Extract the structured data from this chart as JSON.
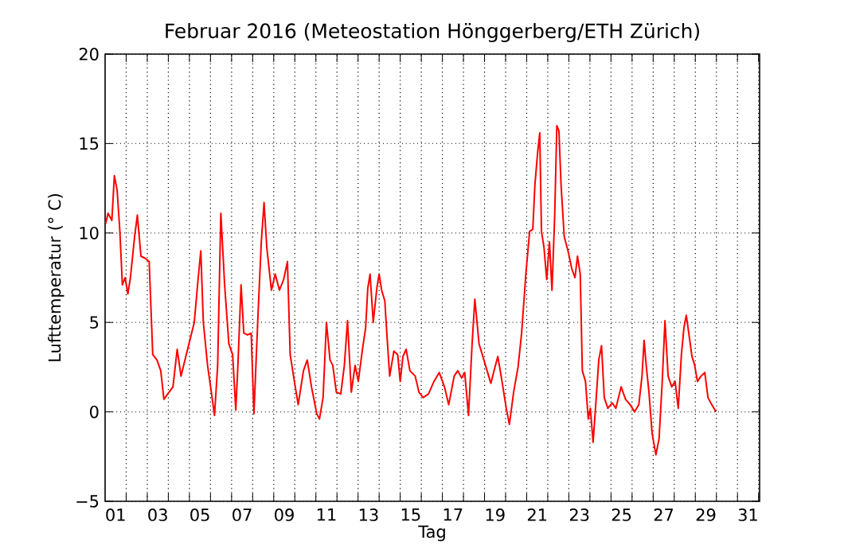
{
  "chart_data": {
    "type": "line",
    "title": "Februar 2016  (Meteostation Hönggerberg/ETH Zürich)",
    "xlabel": "Tag",
    "ylabel": "Lufttemperatur (° C)",
    "x": [
      0.52,
      0.64,
      0.82,
      0.94,
      1.07,
      1.2,
      1.32,
      1.45,
      1.58,
      1.7,
      1.9,
      2.03,
      2.2,
      2.38,
      2.59,
      2.76,
      2.96,
      3.14,
      3.29,
      3.47,
      3.72,
      3.92,
      4.1,
      4.35,
      4.73,
      4.91,
      5.04,
      5.16,
      5.36,
      5.54,
      5.69,
      5.84,
      5.99,
      6.17,
      6.37,
      6.55,
      6.7,
      6.8,
      6.95,
      7.08,
      7.26,
      7.43,
      7.56,
      7.76,
      7.91,
      8.04,
      8.17,
      8.39,
      8.57,
      8.77,
      8.97,
      9.15,
      9.28,
      9.48,
      9.66,
      9.91,
      10.09,
      10.29,
      10.54,
      10.67,
      10.84,
      11.0,
      11.17,
      11.3,
      11.47,
      11.68,
      11.85,
      12.0,
      12.18,
      12.36,
      12.51,
      12.71,
      12.86,
      12.96,
      13.07,
      13.22,
      13.39,
      13.5,
      13.62,
      13.77,
      13.87,
      14.0,
      14.2,
      14.38,
      14.5,
      14.63,
      14.78,
      14.96,
      15.21,
      15.39,
      15.59,
      15.84,
      16.1,
      16.35,
      16.6,
      16.8,
      17.06,
      17.23,
      17.41,
      17.56,
      17.74,
      17.91,
      18.04,
      18.24,
      18.42,
      18.62,
      18.8,
      18.95,
      19.13,
      19.33,
      19.53,
      19.68,
      19.88,
      20.09,
      20.26,
      20.46,
      20.64,
      20.79,
      20.89,
      21.02,
      21.12,
      21.2,
      21.32,
      21.45,
      21.58,
      21.7,
      21.83,
      21.93,
      22.03,
      22.13,
      22.28,
      22.46,
      22.64,
      22.79,
      22.91,
      23.04,
      23.14,
      23.29,
      23.42,
      23.52,
      23.65,
      23.8,
      23.92,
      24.05,
      24.18,
      24.35,
      24.56,
      24.73,
      24.98,
      25.19,
      25.41,
      25.62,
      25.82,
      25.97,
      26.07,
      26.17,
      26.3,
      26.45,
      26.63,
      26.78,
      26.93,
      27.06,
      27.21,
      27.38,
      27.54,
      27.69,
      27.84,
      27.96,
      28.07,
      28.19,
      28.34,
      28.47,
      28.6,
      28.77,
      28.95,
      29.1,
      29.28,
      29.48
    ],
    "values": [
      10.5,
      11.1,
      10.7,
      13.2,
      12.4,
      10.1,
      7.1,
      7.5,
      6.6,
      7.5,
      9.8,
      11.0,
      8.7,
      8.6,
      8.4,
      3.2,
      2.9,
      2.3,
      0.7,
      1.0,
      1.4,
      3.5,
      2.0,
      3.2,
      5.0,
      7.4,
      9.0,
      5.0,
      2.6,
      1.1,
      -0.2,
      2.6,
      11.1,
      7.1,
      3.8,
      3.2,
      0.1,
      2.6,
      7.1,
      4.4,
      4.3,
      4.4,
      -0.1,
      5.6,
      9.5,
      11.7,
      9.2,
      6.8,
      7.7,
      6.8,
      7.4,
      8.4,
      3.2,
      1.7,
      0.4,
      2.3,
      2.9,
      1.4,
      -0.1,
      -0.4,
      0.8,
      5.0,
      2.9,
      2.6,
      1.1,
      1.0,
      2.6,
      5.1,
      1.1,
      2.6,
      1.7,
      3.5,
      4.7,
      6.9,
      7.7,
      5.0,
      6.9,
      7.7,
      6.8,
      6.2,
      4.3,
      2.0,
      3.4,
      3.2,
      1.7,
      3.1,
      3.5,
      2.3,
      2.0,
      1.1,
      0.8,
      1.0,
      1.7,
      2.2,
      1.4,
      0.4,
      2.0,
      2.3,
      1.9,
      2.2,
      -0.2,
      3.8,
      6.3,
      3.8,
      3.1,
      2.3,
      1.6,
      2.3,
      3.1,
      1.7,
      0.2,
      -0.7,
      1.1,
      2.5,
      4.4,
      7.7,
      10.1,
      10.2,
      12.7,
      14.5,
      15.6,
      10.1,
      9.2,
      7.4,
      9.5,
      6.8,
      11.0,
      16.0,
      15.7,
      12.7,
      9.8,
      9.0,
      8.0,
      7.5,
      8.7,
      7.7,
      2.3,
      1.7,
      -0.4,
      0.2,
      -1.7,
      0.8,
      2.9,
      3.7,
      0.8,
      0.2,
      0.5,
      0.2,
      1.4,
      0.7,
      0.4,
      0.0,
      0.4,
      2.0,
      4.0,
      2.6,
      1.1,
      -1.2,
      -2.4,
      -1.5,
      1.7,
      5.1,
      2.0,
      1.4,
      1.7,
      0.2,
      3.2,
      4.7,
      5.4,
      4.4,
      3.1,
      2.6,
      1.7,
      2.0,
      2.2,
      0.8,
      0.4,
      0.0
    ],
    "color": "#ff0000",
    "xlim": [
      0.5,
      31.55
    ],
    "ylim": [
      -5,
      20
    ],
    "xticks": [
      {
        "value": 1,
        "label": "01"
      },
      {
        "value": 3,
        "label": "03"
      },
      {
        "value": 5,
        "label": "05"
      },
      {
        "value": 7,
        "label": "07"
      },
      {
        "value": 9,
        "label": "09"
      },
      {
        "value": 11,
        "label": "11"
      },
      {
        "value": 13,
        "label": "13"
      },
      {
        "value": 15,
        "label": "15"
      },
      {
        "value": 17,
        "label": "17"
      },
      {
        "value": 19,
        "label": "19"
      },
      {
        "value": 21,
        "label": "21"
      },
      {
        "value": 23,
        "label": "23"
      },
      {
        "value": 25,
        "label": "25"
      },
      {
        "value": 27,
        "label": "27"
      },
      {
        "value": 29,
        "label": "29"
      },
      {
        "value": 31,
        "label": "31"
      },
      {
        "value": 1.5,
        "label": null
      },
      {
        "value": 2.5,
        "label": null
      },
      {
        "value": 3.5,
        "label": null
      },
      {
        "value": 4.5,
        "label": null
      },
      {
        "value": 5.5,
        "label": null
      },
      {
        "value": 6.5,
        "label": null
      },
      {
        "value": 7.5,
        "label": null
      },
      {
        "value": 8.5,
        "label": null
      },
      {
        "value": 9.5,
        "label": null
      },
      {
        "value": 10.5,
        "label": null
      },
      {
        "value": 11.5,
        "label": null
      },
      {
        "value": 12.5,
        "label": null
      },
      {
        "value": 13.5,
        "label": null
      },
      {
        "value": 14.5,
        "label": null
      },
      {
        "value": 15.5,
        "label": null
      },
      {
        "value": 16.5,
        "label": null
      },
      {
        "value": 17.5,
        "label": null
      },
      {
        "value": 18.5,
        "label": null
      },
      {
        "value": 19.5,
        "label": null
      },
      {
        "value": 20.5,
        "label": null
      },
      {
        "value": 21.5,
        "label": null
      },
      {
        "value": 22.5,
        "label": null
      },
      {
        "value": 23.5,
        "label": null
      },
      {
        "value": 24.5,
        "label": null
      },
      {
        "value": 25.5,
        "label": null
      },
      {
        "value": 26.5,
        "label": null
      },
      {
        "value": 27.5,
        "label": null
      },
      {
        "value": 28.5,
        "label": null
      },
      {
        "value": 29.5,
        "label": null
      },
      {
        "value": 30.5,
        "label": null
      },
      {
        "value": 31.5,
        "label": null
      }
    ],
    "yticks": [
      {
        "value": -5,
        "label": "−5"
      },
      0,
      5,
      10,
      15,
      20
    ],
    "grid": true
  }
}
